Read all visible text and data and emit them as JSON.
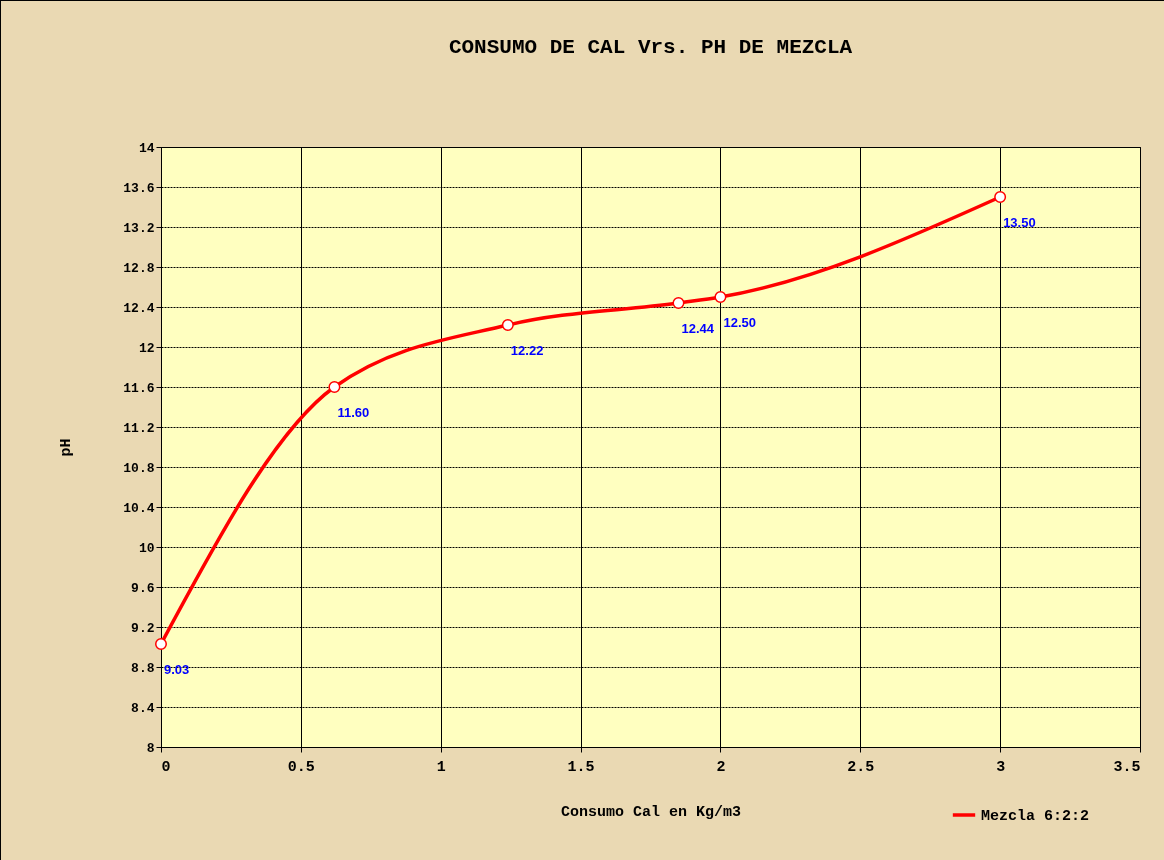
{
  "chart_data": {
    "type": "line",
    "title": "CONSUMO DE CAL Vrs. PH DE MEZCLA",
    "xlabel": "Consumo Cal en Kg/m3",
    "ylabel": "pH",
    "x": [
      0,
      0.62,
      1.24,
      1.85,
      2.0,
      3.0
    ],
    "series": [
      {
        "name": "Mezcla 6:2:2",
        "color": "#ff0000",
        "values": [
          9.03,
          11.6,
          12.22,
          12.44,
          12.5,
          13.5
        ]
      }
    ],
    "value_labels": [
      "9.03",
      "11.60",
      "12.22",
      "12.44",
      "12.50",
      "13.50"
    ],
    "xlim": [
      0,
      3.5
    ],
    "xticks": [
      0,
      0.5,
      1,
      1.5,
      2,
      2.5,
      3,
      3.5
    ],
    "ylim": [
      8,
      14
    ],
    "yticks": [
      8,
      8.4,
      8.8,
      9.2,
      9.6,
      10,
      10.4,
      10.8,
      11.2,
      11.6,
      12,
      12.4,
      12.8,
      13.2,
      13.6,
      14
    ],
    "grid": true,
    "legend": "bottom right",
    "marker": "circle",
    "line_style": "solid"
  }
}
